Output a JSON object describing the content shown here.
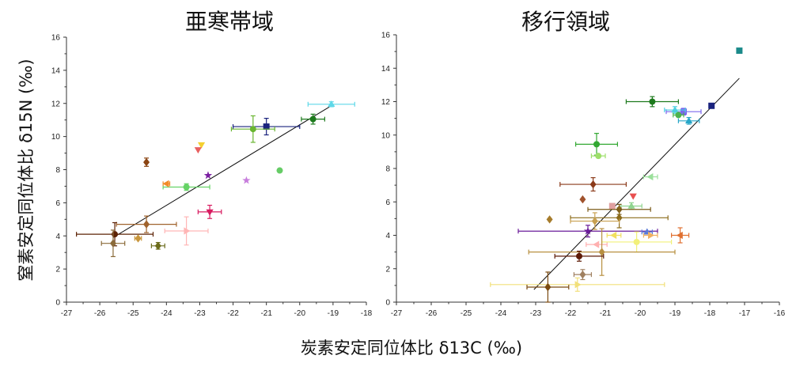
{
  "chart_data": [
    {
      "type": "scatter",
      "title": "亜寒帯域",
      "xlabel": "炭素安定同位体比 δ13C (‰)",
      "ylabel": "窒素安定同位体比 δ15N (‰)",
      "xlim": [
        -27,
        -18
      ],
      "ylim": [
        0,
        16
      ],
      "xticks": [
        "-27",
        "-26",
        "-25",
        "-24",
        "-23",
        "-22",
        "-21",
        "-20",
        "-19",
        "-18"
      ],
      "yticks": [
        "0",
        "2",
        "4",
        "6",
        "8",
        "10",
        "12",
        "14",
        "16"
      ],
      "grid": false,
      "legend": "none",
      "regression_line": {
        "x": [
          -25.6,
          -19.1
        ],
        "y": [
          3.9,
          11.8
        ]
      },
      "points": [
        {
          "x": -19.05,
          "y": 11.95,
          "xerr": 0.7,
          "yerr": 0.15,
          "marker": "triangle",
          "color": "#5fd8e8"
        },
        {
          "x": -19.6,
          "y": 11.05,
          "xerr": 0.35,
          "yerr": 0.3,
          "marker": "circle",
          "color": "#1d7a1d"
        },
        {
          "x": -21.0,
          "y": 10.6,
          "xerr": 1.0,
          "yerr": 0.5,
          "marker": "square",
          "color": "#1a237e"
        },
        {
          "x": -21.4,
          "y": 10.45,
          "xerr": 0.65,
          "yerr": 0.8,
          "marker": "circle",
          "color": "#69b530"
        },
        {
          "x": -20.6,
          "y": 7.95,
          "xerr": 0,
          "yerr": 0,
          "marker": "circle",
          "color": "#66cc66"
        },
        {
          "x": -22.95,
          "y": 9.5,
          "xerr": 0,
          "yerr": 0,
          "marker": "triangle-down",
          "color": "#f4d030"
        },
        {
          "x": -23.05,
          "y": 9.2,
          "xerr": 0,
          "yerr": 0,
          "marker": "triangle-down",
          "color": "#e86060"
        },
        {
          "x": -24.6,
          "y": 8.45,
          "xerr": 0,
          "yerr": 0.25,
          "marker": "diamond",
          "color": "#8b4513"
        },
        {
          "x": -22.75,
          "y": 7.65,
          "xerr": 0,
          "yerr": 0,
          "marker": "star",
          "color": "#7b1fa2"
        },
        {
          "x": -21.6,
          "y": 7.35,
          "xerr": 0,
          "yerr": 0,
          "marker": "star",
          "color": "#c77ddc"
        },
        {
          "x": -23.4,
          "y": 6.95,
          "xerr": 0.7,
          "yerr": 0.2,
          "marker": "circle",
          "color": "#66d366"
        },
        {
          "x": -24.0,
          "y": 7.15,
          "xerr": 0.1,
          "yerr": 0,
          "marker": "triangle-left",
          "color": "#f28c28"
        },
        {
          "x": -22.7,
          "y": 5.45,
          "xerr": 0.35,
          "yerr": 0.4,
          "marker": "triangle-down",
          "color": "#d81b60"
        },
        {
          "x": -23.4,
          "y": 4.3,
          "xerr": 0.65,
          "yerr": 0.85,
          "marker": "triangle-right",
          "color": "#ffb6b6"
        },
        {
          "x": -24.6,
          "y": 4.7,
          "xerr": 0.9,
          "yerr": 0.5,
          "marker": "diamond",
          "color": "#a0632c"
        },
        {
          "x": -25.55,
          "y": 4.1,
          "xerr": 1.15,
          "yerr": 0.7,
          "marker": "circle",
          "color": "#5d2306"
        },
        {
          "x": -24.85,
          "y": 3.85,
          "xerr": 0.1,
          "yerr": 0,
          "marker": "diamond",
          "color": "#c8963c"
        },
        {
          "x": -25.6,
          "y": 3.55,
          "xerr": 0.35,
          "yerr": 0.8,
          "marker": "diamond",
          "color": "#8b6b3a"
        },
        {
          "x": -24.25,
          "y": 3.4,
          "xerr": 0.2,
          "yerr": 0.2,
          "marker": "diamond",
          "color": "#6b6b1a"
        }
      ]
    },
    {
      "type": "scatter",
      "title": "移行領域",
      "xlabel": "炭素安定同位体比 δ13C (‰)",
      "ylabel": "窒素安定同位体比 δ15N (‰)",
      "xlim": [
        -27,
        -16
      ],
      "ylim": [
        0,
        16
      ],
      "xticks": [
        "-27",
        "-26",
        "-25",
        "-24",
        "-23",
        "-22",
        "-21",
        "-20",
        "-19",
        "-18",
        "-17",
        "-16"
      ],
      "yticks": [
        "0",
        "2",
        "4",
        "6",
        "8",
        "10",
        "12",
        "14",
        "16"
      ],
      "grid": false,
      "legend": "none",
      "regression_line": {
        "x": [
          -23.05,
          -17.15
        ],
        "y": [
          0.75,
          13.4
        ]
      },
      "points": [
        {
          "x": -17.15,
          "y": 15.05,
          "xerr": 0,
          "yerr": 0,
          "marker": "square",
          "color": "#1b8a8a"
        },
        {
          "x": -17.95,
          "y": 11.75,
          "xerr": 0,
          "yerr": 0,
          "marker": "square",
          "color": "#1a237e"
        },
        {
          "x": -19.65,
          "y": 12.0,
          "xerr": 0.75,
          "yerr": 0.3,
          "marker": "circle",
          "color": "#1d7a1d"
        },
        {
          "x": -18.75,
          "y": 11.4,
          "xerr": 0.5,
          "yerr": 0.2,
          "marker": "square",
          "color": "#7b68ee"
        },
        {
          "x": -19.0,
          "y": 11.5,
          "xerr": 0.3,
          "yerr": 0.2,
          "marker": "triangle",
          "color": "#4dd0e1"
        },
        {
          "x": -18.9,
          "y": 11.2,
          "xerr": 0.15,
          "yerr": 0,
          "marker": "circle",
          "color": "#4db34d"
        },
        {
          "x": -18.6,
          "y": 10.85,
          "xerr": 0.3,
          "yerr": 0.2,
          "marker": "triangle",
          "color": "#26a6c8"
        },
        {
          "x": -21.25,
          "y": 9.45,
          "xerr": 0.6,
          "yerr": 0.65,
          "marker": "circle",
          "color": "#32a832"
        },
        {
          "x": -21.2,
          "y": 8.75,
          "xerr": 0.2,
          "yerr": 0,
          "marker": "circle",
          "color": "#9edf6a"
        },
        {
          "x": -19.7,
          "y": 7.5,
          "xerr": 0.2,
          "yerr": 0,
          "marker": "triangle-left",
          "color": "#9be09b"
        },
        {
          "x": -21.35,
          "y": 7.05,
          "xerr": 0.95,
          "yerr": 0.4,
          "marker": "diamond",
          "color": "#8b3a1a"
        },
        {
          "x": -21.65,
          "y": 6.15,
          "xerr": 0,
          "yerr": 0,
          "marker": "diamond",
          "color": "#a0522d"
        },
        {
          "x": -20.2,
          "y": 6.35,
          "xerr": 0,
          "yerr": 0,
          "marker": "triangle-down",
          "color": "#e85050"
        },
        {
          "x": -20.25,
          "y": 5.75,
          "xerr": 0.3,
          "yerr": 0.2,
          "marker": "triangle",
          "color": "#8fd48f"
        },
        {
          "x": -20.8,
          "y": 5.75,
          "xerr": 0,
          "yerr": 0,
          "marker": "square",
          "color": "#e0a0a0"
        },
        {
          "x": -22.6,
          "y": 4.95,
          "xerr": 0,
          "yerr": 0,
          "marker": "diamond",
          "color": "#a67c2c"
        },
        {
          "x": -20.6,
          "y": 5.55,
          "xerr": 0.9,
          "yerr": 0.3,
          "marker": "diamond",
          "color": "#7b5b1a"
        },
        {
          "x": -20.6,
          "y": 5.05,
          "xerr": 1.4,
          "yerr": 0.6,
          "marker": "diamond",
          "color": "#8b6b1a"
        },
        {
          "x": -21.3,
          "y": 4.85,
          "xerr": 0.7,
          "yerr": 0.5,
          "marker": "diamond",
          "color": "#c8a050"
        },
        {
          "x": -21.5,
          "y": 4.25,
          "xerr": 2.0,
          "yerr": 0.35,
          "marker": "star",
          "color": "#6a1b9a"
        },
        {
          "x": -19.8,
          "y": 4.2,
          "xerr": 0.15,
          "yerr": 0,
          "marker": "triangle",
          "color": "#5b7bd8"
        },
        {
          "x": -19.7,
          "y": 4.0,
          "xerr": 0.2,
          "yerr": 0,
          "marker": "triangle-right",
          "color": "#f0b060"
        },
        {
          "x": -20.75,
          "y": 4.0,
          "xerr": 0.2,
          "yerr": 0,
          "marker": "triangle-left",
          "color": "#f2e060"
        },
        {
          "x": -18.85,
          "y": 4.0,
          "xerr": 0.25,
          "yerr": 0.45,
          "marker": "triangle-left",
          "color": "#e07030"
        },
        {
          "x": -21.25,
          "y": 3.45,
          "xerr": 0.3,
          "yerr": 0,
          "marker": "triangle-left",
          "color": "#ffb0b0"
        },
        {
          "x": -20.1,
          "y": 3.6,
          "xerr": 1.0,
          "yerr": 0.6,
          "marker": "circle",
          "color": "#f2f07a"
        },
        {
          "x": -21.1,
          "y": 3.0,
          "xerr": 2.1,
          "yerr": 1.4,
          "marker": "diamond",
          "color": "#b89040"
        },
        {
          "x": -21.75,
          "y": 2.75,
          "xerr": 0.7,
          "yerr": 0.3,
          "marker": "circle",
          "color": "#5d1a06"
        },
        {
          "x": -21.65,
          "y": 1.65,
          "xerr": 0.25,
          "yerr": 0.3,
          "marker": "diamond",
          "color": "#a08060"
        },
        {
          "x": -21.8,
          "y": 1.05,
          "xerr": 2.5,
          "yerr": 0.4,
          "marker": "triangle-right",
          "color": "#f2e07a"
        },
        {
          "x": -22.65,
          "y": 0.9,
          "xerr": 0.6,
          "yerr": 0.9,
          "marker": "diamond",
          "color": "#7b4a10"
        }
      ]
    }
  ]
}
